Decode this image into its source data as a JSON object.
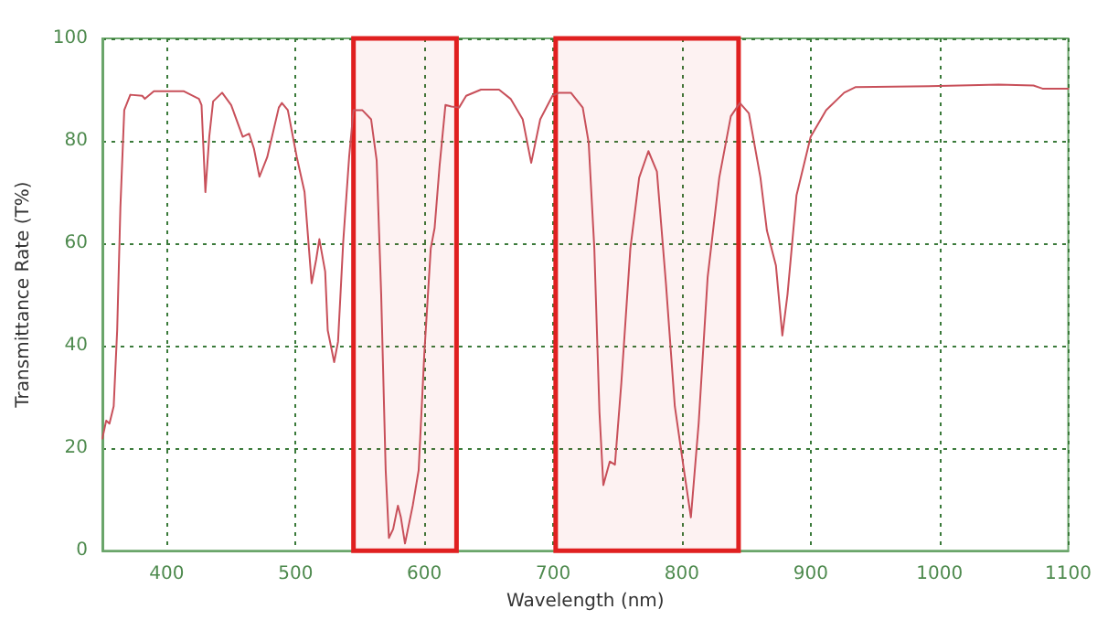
{
  "chart_data": {
    "type": "line",
    "xlabel": "Wavelength (nm)",
    "ylabel": "Transmittance Rate (T%)",
    "xlim": [
      350,
      1100
    ],
    "xticks": [
      400,
      500,
      600,
      700,
      800,
      900,
      1000,
      1100
    ],
    "ylim": [
      0,
      100
    ],
    "yticks": [
      0,
      20,
      40,
      60,
      80,
      100
    ],
    "grid": true,
    "marker": "none",
    "line_style": "solid",
    "series": [
      {
        "color": "#c8505a",
        "x": [
          350,
          353,
          355.5,
          358.8,
          361.5,
          364,
          367,
          371.7,
          381,
          383,
          390,
          413,
          425,
          427,
          430,
          433,
          436,
          443,
          450,
          459,
          464,
          467.7,
          472,
          478,
          487,
          489.4,
          494,
          501,
          507,
          512.5,
          516,
          518.5,
          523,
          525,
          530,
          533,
          537,
          541.6,
          545,
          551.8,
          558.7,
          563,
          566.5,
          570,
          572.5,
          575.8,
          579.5,
          581.8,
          585,
          591,
          595.6,
          600,
          605,
          608,
          611.8,
          616.4,
          621,
          627,
          632.5,
          644,
          658,
          667,
          676.4,
          683,
          690,
          699.5,
          704.6,
          713.8,
          723,
          727.6,
          732,
          736,
          739,
          744,
          748,
          753,
          760,
          766.8,
          774,
          780.6,
          787.6,
          794.5,
          801,
          807,
          813,
          820,
          829,
          838,
          845,
          852,
          861,
          866,
          873,
          878,
          882,
          889,
          900,
          912,
          926,
          935,
          1000,
          1046,
          1073,
          1080,
          1100
        ],
        "values": [
          21.9,
          25.4,
          24.8,
          28.2,
          43,
          67,
          86,
          89,
          88.8,
          88.2,
          89.7,
          89.7,
          88.2,
          87,
          70,
          80.8,
          87.7,
          89.4,
          87,
          80.8,
          81.4,
          78.5,
          73,
          76.8,
          86.5,
          87.4,
          86,
          76.8,
          70,
          52.2,
          56.8,
          60.8,
          54.5,
          43,
          36.8,
          40.8,
          60.2,
          76.8,
          86,
          86,
          84.2,
          76.2,
          50,
          15.7,
          2.5,
          4.2,
          8.8,
          6.5,
          1.4,
          8.8,
          15.7,
          38.5,
          59,
          63,
          75,
          87,
          86.7,
          86.5,
          88.8,
          90,
          90,
          88.2,
          84.2,
          75.7,
          84.2,
          88.8,
          89.4,
          89.4,
          86.5,
          79.7,
          59,
          27,
          12.8,
          17.4,
          16.8,
          32.8,
          59,
          72.8,
          78,
          74,
          52.2,
          28.2,
          16.8,
          6.5,
          24.8,
          53.4,
          72.8,
          84.8,
          87.4,
          85.4,
          72.8,
          62.5,
          55.7,
          42,
          50,
          69.4,
          80.8,
          86,
          89.4,
          90.5,
          90.7,
          91,
          90.8,
          90.2,
          90.2
        ]
      }
    ],
    "bands": [
      {
        "axis": "x",
        "from": 545,
        "to": 625,
        "color": "#e02020"
      },
      {
        "axis": "x",
        "from": 702,
        "to": 844,
        "color": "#e02020"
      }
    ]
  }
}
